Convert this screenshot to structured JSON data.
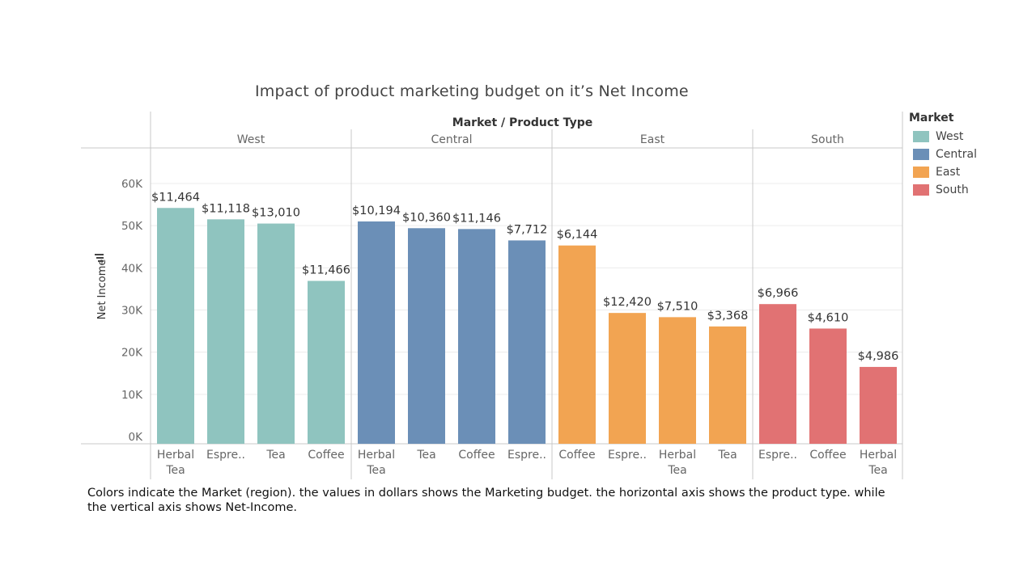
{
  "chart_data": {
    "type": "bar",
    "title": "Impact of product marketing budget on it’s Net Income",
    "header_label": "Market / Product Type",
    "ylabel": "Net Income",
    "ylim": [
      0,
      60000
    ],
    "yticks": [
      0,
      10000,
      20000,
      30000,
      40000,
      50000,
      60000
    ],
    "ytick_labels": [
      "0K",
      "10K",
      "20K",
      "30K",
      "40K",
      "50K",
      "60K"
    ],
    "grid": true,
    "legend_title": "Market",
    "legend_position": "right",
    "colors": {
      "West": "#8fc4bf",
      "Central": "#6b8fb7",
      "East": "#f2a452",
      "South": "#e17273"
    },
    "groups": [
      {
        "market": "West",
        "bars": [
          {
            "category": "Herbal Tea",
            "tick": [
              "Herbal",
              "Tea"
            ],
            "value": 54200,
            "label": "$11,464"
          },
          {
            "category": "Espresso",
            "tick": [
              "Espre.."
            ],
            "value": 51500,
            "label": "$11,118"
          },
          {
            "category": "Tea",
            "tick": [
              "Tea"
            ],
            "value": 50500,
            "label": "$13,010"
          },
          {
            "category": "Coffee",
            "tick": [
              "Coffee"
            ],
            "value": 36900,
            "label": "$11,466"
          }
        ]
      },
      {
        "market": "Central",
        "bars": [
          {
            "category": "Herbal Tea",
            "tick": [
              "Herbal",
              "Tea"
            ],
            "value": 51000,
            "label": "$10,194"
          },
          {
            "category": "Tea",
            "tick": [
              "Tea"
            ],
            "value": 49400,
            "label": "$10,360"
          },
          {
            "category": "Coffee",
            "tick": [
              "Coffee"
            ],
            "value": 49200,
            "label": "$11,146"
          },
          {
            "category": "Espresso",
            "tick": [
              "Espre.."
            ],
            "value": 46500,
            "label": "$7,712"
          }
        ]
      },
      {
        "market": "East",
        "bars": [
          {
            "category": "Coffee",
            "tick": [
              "Coffee"
            ],
            "value": 45300,
            "label": "$6,144"
          },
          {
            "category": "Espresso",
            "tick": [
              "Espre.."
            ],
            "value": 29300,
            "label": "$12,420"
          },
          {
            "category": "Herbal Tea",
            "tick": [
              "Herbal",
              "Tea"
            ],
            "value": 28300,
            "label": "$7,510"
          },
          {
            "category": "Tea",
            "tick": [
              "Tea"
            ],
            "value": 26100,
            "label": "$3,368"
          }
        ]
      },
      {
        "market": "South",
        "bars": [
          {
            "category": "Espresso",
            "tick": [
              "Espre.."
            ],
            "value": 31400,
            "label": "$6,966"
          },
          {
            "category": "Coffee",
            "tick": [
              "Coffee"
            ],
            "value": 25600,
            "label": "$4,610"
          },
          {
            "category": "Herbal Tea",
            "tick": [
              "Herbal",
              "Tea"
            ],
            "value": 16500,
            "label": "$4,986"
          }
        ]
      }
    ]
  },
  "legend": {
    "title": "Market",
    "items": [
      {
        "label": "West",
        "color": "#8fc4bf"
      },
      {
        "label": "Central",
        "color": "#6b8fb7"
      },
      {
        "label": "East",
        "color": "#f2a452"
      },
      {
        "label": "South",
        "color": "#e17273"
      }
    ]
  },
  "caption": "Colors indicate the Market (region). the values in dollars shows the Marketing budget. the horizontal axis shows the product type. while the vertical axis shows Net-Income."
}
